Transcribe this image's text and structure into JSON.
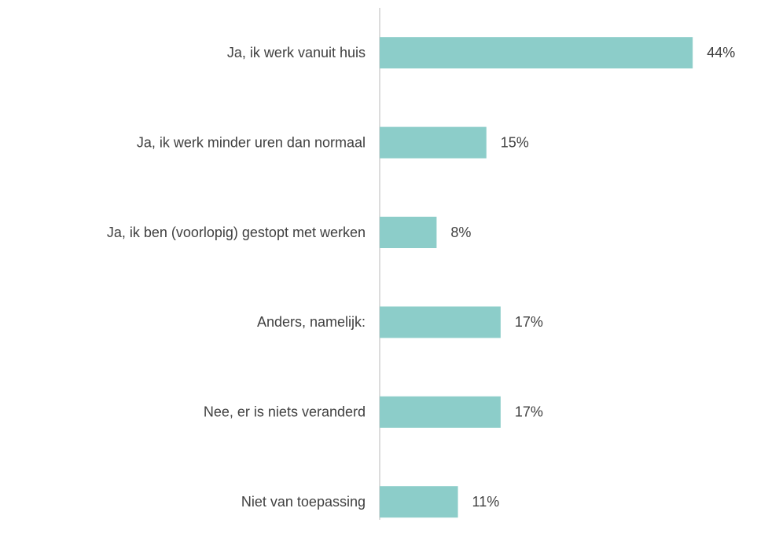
{
  "chart_data": {
    "type": "bar",
    "orientation": "horizontal",
    "categories": [
      "Ja, ik werk vanuit huis",
      "Ja, ik werk minder uren dan normaal",
      "Ja, ik ben (voorlopig) gestopt met werken",
      "Anders, namelijk:",
      "Nee, er is niets veranderd",
      "Niet van toepassing"
    ],
    "values": [
      44,
      15,
      8,
      17,
      17,
      11
    ],
    "value_labels": [
      "44%",
      "15%",
      "8%",
      "17%",
      "17%",
      "11%"
    ],
    "color": "#8ccdc9"
  }
}
